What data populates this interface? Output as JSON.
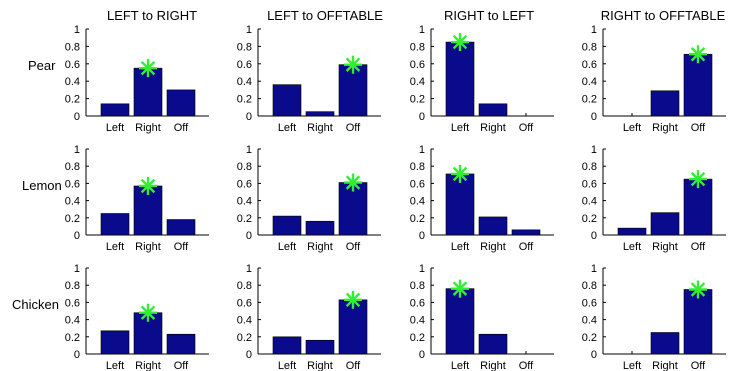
{
  "figure": {
    "colors": {
      "bar": "#0a0a8c",
      "marker": "#33ee33"
    },
    "column_titles": [
      "LEFT to RIGHT",
      "LEFT to OFFTABLE",
      "RIGHT to LEFT",
      "RIGHT to OFFTABLE"
    ],
    "row_labels": [
      "Pear",
      "Lemon",
      "Chicken"
    ],
    "y_ticks": [
      "0",
      "0.2",
      "0.4",
      "0.6",
      "0.8",
      "1"
    ],
    "categories": [
      "Left",
      "Right",
      "Off"
    ]
  },
  "chart_data": [
    {
      "type": "bar",
      "title": "LEFT to RIGHT",
      "row": "Pear",
      "categories": [
        "Left",
        "Right",
        "Off"
      ],
      "values": [
        0.14,
        0.55,
        0.3
      ],
      "marked": "Right",
      "ylim": [
        0,
        1
      ]
    },
    {
      "type": "bar",
      "title": "LEFT to OFFTABLE",
      "row": "Pear",
      "categories": [
        "Left",
        "Right",
        "Off"
      ],
      "values": [
        0.36,
        0.05,
        0.59
      ],
      "marked": "Off",
      "ylim": [
        0,
        1
      ]
    },
    {
      "type": "bar",
      "title": "RIGHT to LEFT",
      "row": "Pear",
      "categories": [
        "Left",
        "Right",
        "Off"
      ],
      "values": [
        0.85,
        0.14,
        0.0
      ],
      "marked": "Left",
      "ylim": [
        0,
        1
      ]
    },
    {
      "type": "bar",
      "title": "RIGHT to OFFTABLE",
      "row": "Pear",
      "categories": [
        "Left",
        "Right",
        "Off"
      ],
      "values": [
        0.0,
        0.29,
        0.71
      ],
      "marked": "Off",
      "ylim": [
        0,
        1
      ]
    },
    {
      "type": "bar",
      "title": "LEFT to RIGHT",
      "row": "Lemon",
      "categories": [
        "Left",
        "Right",
        "Off"
      ],
      "values": [
        0.25,
        0.57,
        0.18
      ],
      "marked": "Right",
      "ylim": [
        0,
        1
      ]
    },
    {
      "type": "bar",
      "title": "LEFT to OFFTABLE",
      "row": "Lemon",
      "categories": [
        "Left",
        "Right",
        "Off"
      ],
      "values": [
        0.22,
        0.16,
        0.61
      ],
      "marked": "Off",
      "ylim": [
        0,
        1
      ]
    },
    {
      "type": "bar",
      "title": "RIGHT to LEFT",
      "row": "Lemon",
      "categories": [
        "Left",
        "Right",
        "Off"
      ],
      "values": [
        0.71,
        0.21,
        0.06
      ],
      "marked": "Left",
      "ylim": [
        0,
        1
      ]
    },
    {
      "type": "bar",
      "title": "RIGHT to OFFTABLE",
      "row": "Lemon",
      "categories": [
        "Left",
        "Right",
        "Off"
      ],
      "values": [
        0.08,
        0.26,
        0.65
      ],
      "marked": "Off",
      "ylim": [
        0,
        1
      ]
    },
    {
      "type": "bar",
      "title": "LEFT to RIGHT",
      "row": "Chicken",
      "categories": [
        "Left",
        "Right",
        "Off"
      ],
      "values": [
        0.27,
        0.48,
        0.23
      ],
      "marked": "Right",
      "ylim": [
        0,
        1
      ]
    },
    {
      "type": "bar",
      "title": "LEFT to OFFTABLE",
      "row": "Chicken",
      "categories": [
        "Left",
        "Right",
        "Off"
      ],
      "values": [
        0.2,
        0.16,
        0.63
      ],
      "marked": "Off",
      "ylim": [
        0,
        1
      ]
    },
    {
      "type": "bar",
      "title": "RIGHT to LEFT",
      "row": "Chicken",
      "categories": [
        "Left",
        "Right",
        "Off"
      ],
      "values": [
        0.76,
        0.23,
        0.0
      ],
      "marked": "Left",
      "ylim": [
        0,
        1
      ]
    },
    {
      "type": "bar",
      "title": "RIGHT to OFFTABLE",
      "row": "Chicken",
      "categories": [
        "Left",
        "Right",
        "Off"
      ],
      "values": [
        0.0,
        0.25,
        0.75
      ],
      "marked": "Off",
      "ylim": [
        0,
        1
      ]
    }
  ]
}
